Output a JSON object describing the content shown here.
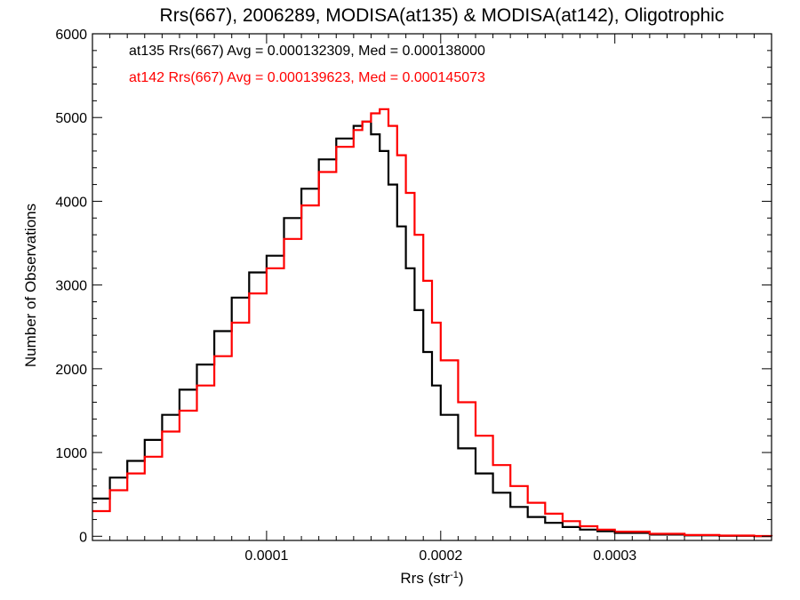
{
  "chart_data": {
    "type": "line",
    "title": "Rrs(667), 2006289, MODISA(at135) & MODISA(at142), Oligotrophic",
    "xlabel_main": "Rrs (str",
    "xlabel_sup": "-1",
    "xlabel_close": ")",
    "ylabel": "Number of Observations",
    "xlim": [
      0.0,
      0.00039
    ],
    "ylim": [
      -50,
      6000
    ],
    "x_ticks": [
      0.0001,
      0.0002,
      0.0003
    ],
    "x_tick_labels": [
      "0.0001",
      "0.0002",
      "0.0003"
    ],
    "y_ticks": [
      0,
      1000,
      2000,
      3000,
      4000,
      5000,
      6000
    ],
    "y_tick_labels": [
      "0",
      "1000",
      "2000",
      "3000",
      "4000",
      "5000",
      "6000"
    ],
    "annotations": [
      "at135 Rrs(667) Avg = 0.000132309, Med = 0.000138000",
      "at142 Rrs(667) Avg = 0.000139623, Med = 0.000145073"
    ],
    "series": [
      {
        "name": "at135",
        "color": "#000000",
        "x": [
          0.0,
          1e-05,
          2e-05,
          3e-05,
          4e-05,
          5e-05,
          6e-05,
          7e-05,
          8e-05,
          9e-05,
          0.0001,
          0.00011,
          0.00012,
          0.00013,
          0.00014,
          0.00015,
          0.000155,
          0.00016,
          0.000165,
          0.00017,
          0.000175,
          0.00018,
          0.000185,
          0.00019,
          0.000195,
          0.0002,
          0.00021,
          0.00022,
          0.00023,
          0.00024,
          0.00025,
          0.00026,
          0.00027,
          0.00028,
          0.00029,
          0.0003,
          0.00032,
          0.00034,
          0.00036,
          0.00038,
          0.00039
        ],
        "y": [
          450,
          700,
          900,
          1150,
          1450,
          1750,
          2050,
          2450,
          2850,
          3150,
          3350,
          3800,
          4150,
          4500,
          4750,
          4900,
          4950,
          4800,
          4600,
          4200,
          3700,
          3200,
          2700,
          2200,
          1800,
          1450,
          1050,
          750,
          520,
          350,
          230,
          160,
          110,
          80,
          60,
          40,
          20,
          10,
          5,
          2,
          0
        ]
      },
      {
        "name": "at142",
        "color": "#ff0000",
        "x": [
          0.0,
          1e-05,
          2e-05,
          3e-05,
          4e-05,
          5e-05,
          6e-05,
          7e-05,
          8e-05,
          9e-05,
          0.0001,
          0.00011,
          0.00012,
          0.00013,
          0.00014,
          0.00015,
          0.000155,
          0.00016,
          0.000165,
          0.00017,
          0.000175,
          0.00018,
          0.000185,
          0.00019,
          0.000195,
          0.0002,
          0.00021,
          0.00022,
          0.00023,
          0.00024,
          0.00025,
          0.00026,
          0.00027,
          0.00028,
          0.00029,
          0.0003,
          0.00032,
          0.00034,
          0.00036,
          0.00038,
          0.00039
        ],
        "y": [
          300,
          550,
          750,
          950,
          1250,
          1500,
          1800,
          2150,
          2550,
          2900,
          3200,
          3550,
          3950,
          4350,
          4650,
          4850,
          4950,
          5050,
          5100,
          4900,
          4550,
          4100,
          3600,
          3050,
          2550,
          2100,
          1600,
          1200,
          850,
          600,
          400,
          270,
          180,
          120,
          80,
          55,
          30,
          15,
          8,
          3,
          0
        ]
      }
    ]
  }
}
